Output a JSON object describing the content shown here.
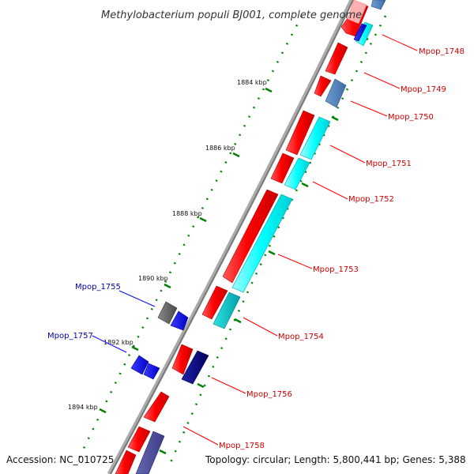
{
  "title": "Methylobacterium populi BJ001, complete genome",
  "footer": {
    "accession": "Accession: NC_010725",
    "summary": "Topology: circular; Length: 5,800,441 bp; Genes: 5,388"
  },
  "ticks": [
    "1884 kbp",
    "1886 kbp",
    "1888 kbp",
    "1890 kbp",
    "1892 kbp",
    "1894 kbp"
  ],
  "gene_labels": {
    "mpop_1748": "Mpop_1748",
    "mpop_1749": "Mpop_1749",
    "mpop_1750": "Mpop_1750",
    "mpop_1751": "Mpop_1751",
    "mpop_1752": "Mpop_1752",
    "mpop_1753": "Mpop_1753",
    "mpop_1754": "Mpop_1754",
    "mpop_1755": "Mpop_1755",
    "mpop_1756": "Mpop_1756",
    "mpop_1757": "Mpop_1757",
    "mpop_1758": "Mpop_1758"
  },
  "colors": {
    "forward_cds": "#ff0000",
    "cyan_track": "#00ffff",
    "blue_track": "#0000ff",
    "navy_track": "#000080",
    "gray_gene": "#666666",
    "forward_label": "#cc0000",
    "reverse_label": "#0000aa",
    "tick_green": "#008000"
  }
}
